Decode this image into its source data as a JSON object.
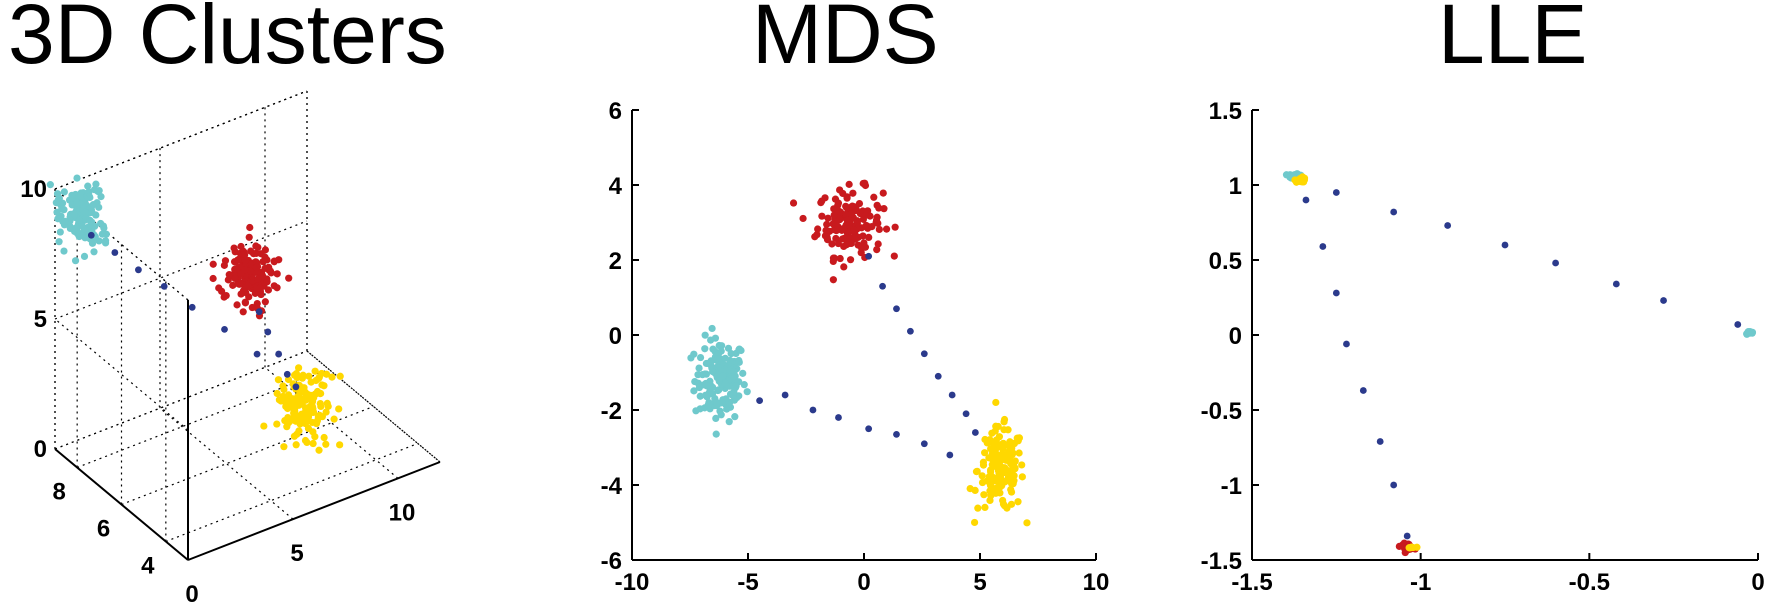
{
  "colors": {
    "chain": "#2B3A8C",
    "cyan": "#6FC9CC",
    "red": "#C81A1E",
    "yellow": "#FFD800"
  },
  "chart_data": [
    {
      "type": "scatter",
      "title": "3D Clusters",
      "projection": "3d",
      "grid": true,
      "xlim": [
        0,
        12
      ],
      "ylim": [
        3,
        9
      ],
      "zlim": [
        0,
        10
      ],
      "xticks": [
        0,
        5,
        10
      ],
      "yticks": [
        4,
        6,
        8
      ],
      "zticks": [
        0,
        5,
        10
      ],
      "clusters": [
        {
          "color": "cyan",
          "center": [
            0.8,
            8.6,
            9.0
          ],
          "n": 150,
          "spread": [
            0.4,
            0.4,
            0.55
          ]
        },
        {
          "color": "red",
          "center": [
            5.4,
            5.4,
            7.5
          ],
          "n": 150,
          "spread": [
            0.5,
            0.4,
            0.55
          ]
        },
        {
          "color": "yellow",
          "center": [
            6.5,
            3.9,
            3.3
          ],
          "n": 150,
          "spread": [
            0.5,
            0.35,
            0.55
          ]
        }
      ],
      "chain": [
        {
          "x": 1.2,
          "y": 8.5,
          "z": 8.2
        },
        {
          "x": 1.9,
          "y": 8.1,
          "z": 7.6
        },
        {
          "x": 2.6,
          "y": 7.7,
          "z": 7.0
        },
        {
          "x": 3.3,
          "y": 7.2,
          "z": 6.5
        },
        {
          "x": 4.0,
          "y": 6.6,
          "z": 5.9
        },
        {
          "x": 4.8,
          "y": 5.9,
          "z": 5.3
        },
        {
          "x": 5.4,
          "y": 5.0,
          "z": 4.8
        },
        {
          "x": 5.5,
          "y": 5.0,
          "z": 6.4
        },
        {
          "x": 5.7,
          "y": 4.8,
          "z": 5.7
        },
        {
          "x": 5.9,
          "y": 4.5,
          "z": 5.0
        },
        {
          "x": 6.1,
          "y": 4.3,
          "z": 4.3
        },
        {
          "x": 6.3,
          "y": 4.1,
          "z": 3.9
        }
      ]
    },
    {
      "type": "scatter",
      "title": "MDS",
      "xlim": [
        -10,
        10
      ],
      "ylim": [
        -6,
        6
      ],
      "xticks": [
        -10,
        -5,
        0,
        5,
        10
      ],
      "yticks": [
        -6,
        -4,
        -2,
        0,
        2,
        4,
        6
      ],
      "clusters": [
        {
          "color": "cyan",
          "center": [
            -6.2,
            -1.2
          ],
          "n": 150,
          "spread": [
            0.55,
            0.55
          ]
        },
        {
          "color": "red",
          "center": [
            -0.6,
            3.0
          ],
          "n": 150,
          "spread": [
            0.7,
            0.45
          ]
        },
        {
          "color": "yellow",
          "center": [
            5.9,
            -3.6
          ],
          "n": 150,
          "spread": [
            0.5,
            0.55
          ]
        }
      ],
      "chain": [
        {
          "x": -4.5,
          "y": -1.75
        },
        {
          "x": -3.4,
          "y": -1.6
        },
        {
          "x": -2.2,
          "y": -2.0
        },
        {
          "x": -1.1,
          "y": -2.2
        },
        {
          "x": 0.2,
          "y": -2.5
        },
        {
          "x": 1.4,
          "y": -2.65
        },
        {
          "x": 2.6,
          "y": -2.9
        },
        {
          "x": 3.7,
          "y": -3.2
        },
        {
          "x": 0.2,
          "y": 2.1
        },
        {
          "x": 0.8,
          "y": 1.3
        },
        {
          "x": 1.4,
          "y": 0.7
        },
        {
          "x": 2.0,
          "y": 0.1
        },
        {
          "x": 2.6,
          "y": -0.5
        },
        {
          "x": 3.2,
          "y": -1.1
        },
        {
          "x": 3.8,
          "y": -1.6
        },
        {
          "x": 4.4,
          "y": -2.1
        },
        {
          "x": 4.8,
          "y": -2.6
        }
      ]
    },
    {
      "type": "scatter",
      "title": "LLE",
      "xlim": [
        -1.5,
        0
      ],
      "ylim": [
        -1.5,
        1.5
      ],
      "xticks": [
        -1.5,
        -1,
        -0.5,
        0
      ],
      "yticks": [
        -1.5,
        -1,
        -0.5,
        0,
        0.5,
        1,
        1.5
      ],
      "clusters": [
        {
          "color": "cyan",
          "center": [
            -1.375,
            1.06
          ],
          "n": 25,
          "spread": [
            0.008,
            0.008
          ]
        },
        {
          "color": "yellow",
          "center": [
            -1.355,
            1.035
          ],
          "n": 25,
          "spread": [
            0.008,
            0.008
          ]
        },
        {
          "color": "cyan",
          "center": [
            -0.025,
            0.015
          ],
          "n": 12,
          "spread": [
            0.006,
            0.005
          ]
        },
        {
          "color": "red",
          "center": [
            -1.04,
            -1.41
          ],
          "n": 25,
          "spread": [
            0.01,
            0.01
          ]
        },
        {
          "color": "yellow",
          "center": [
            -1.03,
            -1.42
          ],
          "n": 6,
          "spread": [
            0.006,
            0.006
          ]
        }
      ],
      "chain": [
        {
          "x": -1.25,
          "y": 0.95
        },
        {
          "x": -1.08,
          "y": 0.82
        },
        {
          "x": -0.92,
          "y": 0.73
        },
        {
          "x": -0.75,
          "y": 0.6
        },
        {
          "x": -0.6,
          "y": 0.48
        },
        {
          "x": -0.42,
          "y": 0.34
        },
        {
          "x": -0.28,
          "y": 0.23
        },
        {
          "x": -0.06,
          "y": 0.07
        },
        {
          "x": -1.34,
          "y": 0.9
        },
        {
          "x": -1.29,
          "y": 0.59
        },
        {
          "x": -1.25,
          "y": 0.28
        },
        {
          "x": -1.22,
          "y": -0.06
        },
        {
          "x": -1.17,
          "y": -0.37
        },
        {
          "x": -1.12,
          "y": -0.71
        },
        {
          "x": -1.08,
          "y": -1.0
        },
        {
          "x": -1.04,
          "y": -1.34
        }
      ]
    }
  ]
}
